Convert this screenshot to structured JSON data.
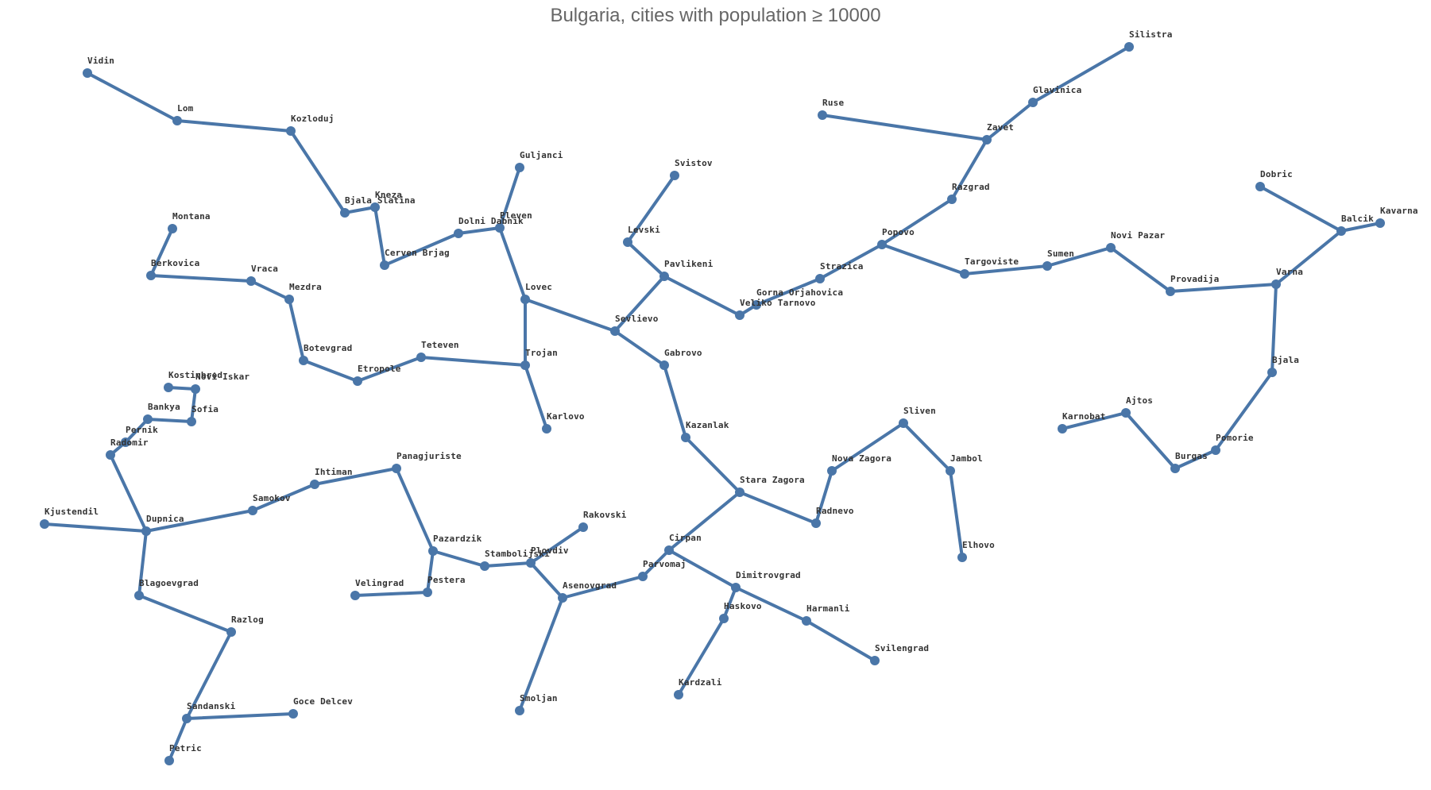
{
  "title": "Bulgaria, cities with population ≥ 10000",
  "colors": {
    "edge": "#4a76a8",
    "node": "#4a76a8",
    "label": "#333333",
    "title": "#666666"
  },
  "cities": [
    "Vidin",
    "Lom",
    "Kozloduj",
    "Bjala Slatina",
    "Kneza",
    "Cerven Brjag",
    "Dolni Dabnik",
    "Pleven",
    "Guljanci",
    "Montana",
    "Berkovica",
    "Vraca",
    "Mezdra",
    "Botevgrad",
    "Etropole",
    "Teteven",
    "Trojan",
    "Karlovo",
    "Lovec",
    "Sevlievo",
    "Pavlikeni",
    "Levski",
    "Svistov",
    "Veliko Tarnovo",
    "Gorna Orjahovica",
    "Strazica",
    "Popovo",
    "Razgrad",
    "Zavet",
    "Ruse",
    "Glavinica",
    "Silistra",
    "Targoviste",
    "Sumen",
    "Novi Pazar",
    "Provadija",
    "Varna",
    "Balcik",
    "Dobric",
    "Kavarna",
    "Bjala",
    "Pomorie",
    "Burgas",
    "Ajtos",
    "Karnobat",
    "Gabrovo",
    "Kazanlak",
    "Stara Zagora",
    "Nova Zagora",
    "Sliven",
    "Jambol",
    "Elhovo",
    "Radnevo",
    "Cirpan",
    "Parvomaj",
    "Dimitrovgrad",
    "Haskovo",
    "Kardzali",
    "Harmanli",
    "Svilengrad",
    "Asenovgrad",
    "Smoljan",
    "Plovdiv",
    "Rakovski",
    "Stambolijski",
    "Pazardzik",
    "Pestera",
    "Velingrad",
    "Panagjuriste",
    "Ihtiman",
    "Samokov",
    "Dupnica",
    "Kjustendil",
    "Radomir",
    "Pernik",
    "Bankya",
    "Sofia",
    "Kostinbrod",
    "Novi Iskar",
    "Blagoevgrad",
    "Razlog",
    "Sandanski",
    "Goce Delcev",
    "Petric"
  ]
}
